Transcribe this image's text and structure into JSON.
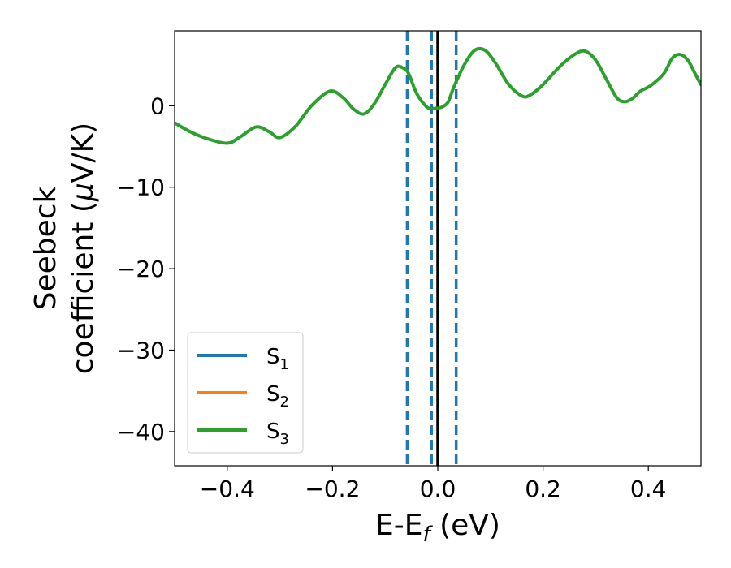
{
  "chart_data": {
    "type": "line",
    "title": "",
    "xlabel": {
      "main": "E-E",
      "sub": "f",
      "unit": " (eV)"
    },
    "ylabel": {
      "line1": "Seebeck",
      "line2_prefix": "coefficient  (",
      "mu": "μ",
      "line2_suffix": "V/K)"
    },
    "xlim": [
      -0.5,
      0.5
    ],
    "ylim": [
      -44.2,
      9.2
    ],
    "xticks": [
      -0.4,
      -0.2,
      0.0,
      0.2,
      0.4
    ],
    "xtick_labels": [
      "−0.4",
      "−0.2",
      "0.0",
      "0.2",
      "0.4"
    ],
    "yticks": [
      -40,
      -30,
      -20,
      -10,
      0
    ],
    "ytick_labels": [
      "−40",
      "−30",
      "−20",
      "−10",
      "0"
    ],
    "grid": false,
    "legend_position": "lower-left",
    "series": [
      {
        "name": "S",
        "sub": "1",
        "color": "#1f77b4",
        "x": [],
        "y": []
      },
      {
        "name": "S",
        "sub": "2",
        "color": "#ff7f0e",
        "x": [],
        "y": []
      },
      {
        "name": "S",
        "sub": "3",
        "color": "#2ca02c",
        "x": [
          -0.5,
          -0.47,
          -0.44,
          -0.4,
          -0.375,
          -0.345,
          -0.32,
          -0.3,
          -0.27,
          -0.24,
          -0.205,
          -0.18,
          -0.16,
          -0.14,
          -0.12,
          -0.1,
          -0.08,
          -0.065,
          -0.055,
          -0.04,
          -0.02,
          -0.005,
          0.0,
          0.01,
          0.02,
          0.03,
          0.05,
          0.07,
          0.09,
          0.11,
          0.135,
          0.16,
          0.175,
          0.2,
          0.23,
          0.26,
          0.28,
          0.3,
          0.32,
          0.34,
          0.355,
          0.37,
          0.385,
          0.405,
          0.43,
          0.445,
          0.46,
          0.475,
          0.49,
          0.5
        ],
        "y": [
          -2.1,
          -3.2,
          -4.0,
          -4.6,
          -3.8,
          -2.6,
          -3.2,
          -3.9,
          -2.5,
          0.0,
          1.8,
          1.0,
          -0.4,
          -1.0,
          0.3,
          2.6,
          4.7,
          4.6,
          3.9,
          1.5,
          -0.2,
          -0.3,
          -0.3,
          -0.1,
          0.5,
          2.2,
          5.0,
          6.8,
          6.8,
          5.2,
          2.6,
          1.2,
          1.3,
          2.6,
          4.7,
          6.3,
          6.7,
          5.6,
          3.3,
          1.0,
          0.5,
          0.9,
          1.8,
          2.5,
          4.0,
          5.8,
          6.3,
          5.6,
          3.8,
          2.6
        ]
      }
    ],
    "reference_lines": [
      {
        "x": -0.058,
        "color": "#1f77b4",
        "style": "dashed"
      },
      {
        "x": -0.012,
        "color": "#1f77b4",
        "style": "dashed"
      },
      {
        "x": 0.035,
        "color": "#1f77b4",
        "style": "dashed"
      },
      {
        "x": 0.0,
        "color": "#000000",
        "style": "solid"
      }
    ]
  }
}
